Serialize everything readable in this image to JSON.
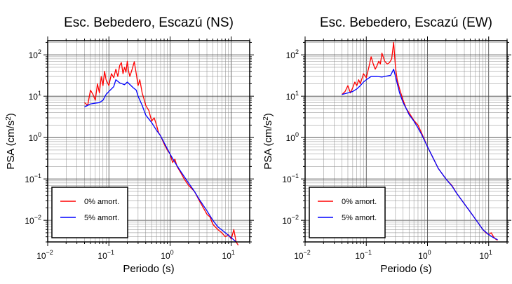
{
  "chart_data": [
    {
      "type": "line",
      "title": "Esc. Bebedero, Escazú (NS)",
      "xlabel": "Periodo (s)",
      "ylabel": "PSA (cm/s²)",
      "ylabel_parts": [
        "PSA (cm/s",
        "2",
        ")"
      ],
      "xscale": "log",
      "yscale": "log",
      "xlim": [
        0.01,
        20
      ],
      "ylim": [
        0.003,
        220
      ],
      "grid": true,
      "legend_position": "bottom-left",
      "x_ticks": [
        {
          "base": "10",
          "exp": "−2",
          "value": 0.01
        },
        {
          "base": "10",
          "exp": "−1",
          "value": 0.1
        },
        {
          "base": "10",
          "exp": "0",
          "value": 1
        },
        {
          "base": "10",
          "exp": "1",
          "value": 10
        }
      ],
      "y_ticks": [
        {
          "base": "10",
          "exp": "−2",
          "value": 0.01
        },
        {
          "base": "10",
          "exp": "−1",
          "value": 0.1
        },
        {
          "base": "10",
          "exp": "0",
          "value": 1
        },
        {
          "base": "10",
          "exp": "1",
          "value": 10
        },
        {
          "base": "10",
          "exp": "2",
          "value": 100
        }
      ],
      "series": [
        {
          "name": "0% amort.",
          "color": "#ff0000",
          "points": [
            [
              0.04,
              7
            ],
            [
              0.045,
              6
            ],
            [
              0.05,
              14
            ],
            [
              0.055,
              11
            ],
            [
              0.06,
              8
            ],
            [
              0.065,
              20
            ],
            [
              0.07,
              12
            ],
            [
              0.075,
              30
            ],
            [
              0.08,
              18
            ],
            [
              0.085,
              40
            ],
            [
              0.09,
              25
            ],
            [
              0.1,
              18
            ],
            [
              0.11,
              35
            ],
            [
              0.12,
              28
            ],
            [
              0.13,
              45
            ],
            [
              0.14,
              30
            ],
            [
              0.15,
              55
            ],
            [
              0.16,
              65
            ],
            [
              0.17,
              35
            ],
            [
              0.18,
              50
            ],
            [
              0.19,
              38
            ],
            [
              0.2,
              70
            ],
            [
              0.21,
              40
            ],
            [
              0.22,
              30
            ],
            [
              0.24,
              45
            ],
            [
              0.26,
              68
            ],
            [
              0.28,
              35
            ],
            [
              0.3,
              18
            ],
            [
              0.32,
              25
            ],
            [
              0.35,
              12
            ],
            [
              0.38,
              8
            ],
            [
              0.4,
              6
            ],
            [
              0.45,
              4.5
            ],
            [
              0.5,
              2.5
            ],
            [
              0.55,
              3
            ],
            [
              0.6,
              2
            ],
            [
              0.65,
              1.3
            ],
            [
              0.7,
              1.1
            ],
            [
              0.8,
              0.7
            ],
            [
              0.9,
              0.5
            ],
            [
              1,
              0.4
            ],
            [
              1.1,
              0.25
            ],
            [
              1.2,
              0.3
            ],
            [
              1.3,
              0.2
            ],
            [
              1.5,
              0.14
            ],
            [
              1.7,
              0.1
            ],
            [
              2,
              0.07
            ],
            [
              2.5,
              0.05
            ],
            [
              3,
              0.03
            ],
            [
              3.5,
              0.02
            ],
            [
              4,
              0.014
            ],
            [
              4.5,
              0.012
            ],
            [
              5,
              0.008
            ],
            [
              6,
              0.006
            ],
            [
              7,
              0.005
            ],
            [
              8,
              0.004
            ],
            [
              9,
              0.0045
            ],
            [
              10,
              0.0035
            ],
            [
              11,
              0.006
            ],
            [
              12,
              0.003
            ],
            [
              13,
              0.0025
            ]
          ]
        },
        {
          "name": "5% amort.",
          "color": "#0000ff",
          "points": [
            [
              0.04,
              5.5
            ],
            [
              0.05,
              6.5
            ],
            [
              0.06,
              6.8
            ],
            [
              0.07,
              7
            ],
            [
              0.08,
              8
            ],
            [
              0.09,
              11
            ],
            [
              0.1,
              13
            ],
            [
              0.12,
              17
            ],
            [
              0.13,
              25
            ],
            [
              0.15,
              21
            ],
            [
              0.18,
              19
            ],
            [
              0.2,
              22
            ],
            [
              0.25,
              16
            ],
            [
              0.28,
              14
            ],
            [
              0.3,
              10
            ],
            [
              0.35,
              6
            ],
            [
              0.4,
              3.5
            ],
            [
              0.5,
              2.3
            ],
            [
              0.6,
              1.5
            ],
            [
              0.7,
              1.1
            ],
            [
              0.8,
              0.75
            ],
            [
              1,
              0.4
            ],
            [
              1.2,
              0.25
            ],
            [
              1.5,
              0.15
            ],
            [
              2,
              0.08
            ],
            [
              2.5,
              0.05
            ],
            [
              3,
              0.032
            ],
            [
              4,
              0.017
            ],
            [
              5,
              0.01
            ],
            [
              6,
              0.007
            ],
            [
              8,
              0.005
            ],
            [
              10,
              0.0038
            ],
            [
              12,
              0.003
            ]
          ]
        }
      ]
    },
    {
      "type": "line",
      "title": "Esc. Bebedero, Escazú (EW)",
      "xlabel": "Periodo (s)",
      "ylabel": "PSA (cm/s²)",
      "ylabel_parts": [
        "PSA (cm/s",
        "2",
        ")"
      ],
      "xscale": "log",
      "yscale": "log",
      "xlim": [
        0.01,
        20
      ],
      "ylim": [
        0.003,
        220
      ],
      "grid": true,
      "legend_position": "bottom-left",
      "x_ticks": [
        {
          "base": "10",
          "exp": "−2",
          "value": 0.01
        },
        {
          "base": "10",
          "exp": "−1",
          "value": 0.1
        },
        {
          "base": "10",
          "exp": "0",
          "value": 1
        },
        {
          "base": "10",
          "exp": "1",
          "value": 10
        }
      ],
      "y_ticks": [
        {
          "base": "10",
          "exp": "−2",
          "value": 0.01
        },
        {
          "base": "10",
          "exp": "−1",
          "value": 0.1
        },
        {
          "base": "10",
          "exp": "0",
          "value": 1
        },
        {
          "base": "10",
          "exp": "1",
          "value": 10
        },
        {
          "base": "10",
          "exp": "2",
          "value": 100
        }
      ],
      "series": [
        {
          "name": "0% amort.",
          "color": "#ff0000",
          "points": [
            [
              0.04,
              11
            ],
            [
              0.045,
              13
            ],
            [
              0.05,
              18
            ],
            [
              0.055,
              12
            ],
            [
              0.06,
              16
            ],
            [
              0.065,
              22
            ],
            [
              0.07,
              18
            ],
            [
              0.075,
              25
            ],
            [
              0.08,
              20
            ],
            [
              0.09,
              35
            ],
            [
              0.1,
              28
            ],
            [
              0.11,
              50
            ],
            [
              0.12,
              90
            ],
            [
              0.13,
              60
            ],
            [
              0.14,
              45
            ],
            [
              0.15,
              55
            ],
            [
              0.16,
              70
            ],
            [
              0.17,
              60
            ],
            [
              0.18,
              110
            ],
            [
              0.2,
              70
            ],
            [
              0.22,
              60
            ],
            [
              0.24,
              65
            ],
            [
              0.26,
              80
            ],
            [
              0.28,
              200
            ],
            [
              0.3,
              50
            ],
            [
              0.32,
              25
            ],
            [
              0.35,
              15
            ],
            [
              0.4,
              8
            ],
            [
              0.45,
              5
            ],
            [
              0.5,
              4
            ],
            [
              0.6,
              2.6
            ],
            [
              0.7,
              2
            ],
            [
              0.8,
              1.3
            ],
            [
              1,
              0.6
            ],
            [
              1.2,
              0.35
            ],
            [
              1.5,
              0.18
            ],
            [
              2,
              0.1
            ],
            [
              2.5,
              0.07
            ],
            [
              3,
              0.045
            ],
            [
              4,
              0.025
            ],
            [
              5,
              0.016
            ],
            [
              6,
              0.011
            ],
            [
              7,
              0.008
            ],
            [
              8,
              0.006
            ],
            [
              9,
              0.005
            ],
            [
              10,
              0.0045
            ],
            [
              11,
              0.005
            ],
            [
              12,
              0.004
            ],
            [
              13,
              0.0035
            ],
            [
              14,
              0.0033
            ]
          ]
        },
        {
          "name": "5% amort.",
          "color": "#0000ff",
          "points": [
            [
              0.04,
              11
            ],
            [
              0.05,
              12
            ],
            [
              0.06,
              13
            ],
            [
              0.07,
              15
            ],
            [
              0.08,
              18
            ],
            [
              0.09,
              22
            ],
            [
              0.1,
              25
            ],
            [
              0.12,
              30
            ],
            [
              0.15,
              30
            ],
            [
              0.18,
              29
            ],
            [
              0.2,
              30
            ],
            [
              0.25,
              32
            ],
            [
              0.28,
              45
            ],
            [
              0.3,
              30
            ],
            [
              0.35,
              12
            ],
            [
              0.4,
              7
            ],
            [
              0.45,
              5
            ],
            [
              0.5,
              3.6
            ],
            [
              0.6,
              2.5
            ],
            [
              0.7,
              1.7
            ],
            [
              0.8,
              1.2
            ],
            [
              1,
              0.6
            ],
            [
              1.2,
              0.35
            ],
            [
              1.5,
              0.18
            ],
            [
              2,
              0.1
            ],
            [
              2.5,
              0.068
            ],
            [
              3,
              0.045
            ],
            [
              4,
              0.025
            ],
            [
              5,
              0.016
            ],
            [
              6,
              0.011
            ],
            [
              7,
              0.008
            ],
            [
              8,
              0.006
            ],
            [
              10,
              0.0045
            ],
            [
              12,
              0.0038
            ],
            [
              14,
              0.0034
            ]
          ]
        }
      ]
    }
  ]
}
